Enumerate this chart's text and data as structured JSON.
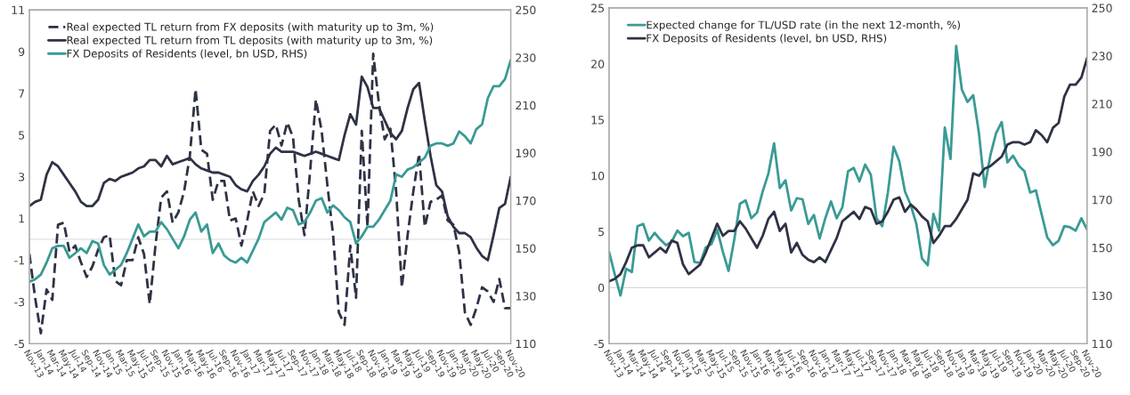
{
  "chart_data": [
    {
      "type": "line",
      "legend": "top left",
      "categories": [
        "Nov-13",
        null,
        "Jan-14",
        null,
        "Mar-14",
        null,
        "May-14",
        null,
        "Jul-14",
        null,
        "Sep-14",
        null,
        "Nov-14",
        null,
        "Jan-15",
        null,
        "Mar-15",
        null,
        "May-15",
        null,
        "Jul-15",
        null,
        "Sep-15",
        null,
        "Nov-15",
        null,
        "Jan-16",
        null,
        "Mar-16",
        null,
        "May-16",
        null,
        "Jul-16",
        null,
        "Sep-16",
        null,
        "Nov-16",
        null,
        "Jan-17",
        null,
        "Mar-17",
        null,
        "May-17",
        null,
        "Jul-17",
        null,
        "Sep-17",
        null,
        "Nov-17",
        null,
        "Jan-18",
        null,
        "Mar-18",
        null,
        "May-18",
        null,
        "Jul-18",
        null,
        "Sep-18",
        null,
        "Nov-18",
        null,
        "Jan-19",
        null,
        "Mar-19",
        null,
        "May-19",
        null,
        "Jul-19",
        null,
        "Sep-19",
        null,
        "Nov-19",
        null,
        "Jan-20",
        null,
        "Mar-20",
        null,
        "May-20",
        null,
        "Jul-20",
        null,
        "Sep-20",
        null,
        "Nov-20"
      ],
      "ylim": [
        -5,
        11
      ],
      "yticks": [
        -5,
        -3,
        -1,
        1,
        3,
        5,
        7,
        9,
        11
      ],
      "y2lim": [
        110,
        250
      ],
      "y2ticks": [
        110,
        130,
        150,
        170,
        190,
        210,
        230,
        250
      ],
      "ref_lines": [
        {
          "axis": "y",
          "value": 0,
          "color": "#d9d9d9"
        }
      ],
      "series": [
        {
          "name": "Real expected TL return from FX deposits (with maturity up to 3m, %)",
          "color": "#2e3244",
          "line_style": "dashed",
          "values": [
            -0.7,
            -2.8,
            -4.5,
            -2.4,
            -2.9,
            0.7,
            0.8,
            -0.6,
            -0.3,
            -1.1,
            -1.8,
            -1.3,
            -0.5,
            0.1,
            0.2,
            -2.0,
            -2.2,
            -1.0,
            -1.0,
            0.1,
            -0.7,
            -3.1,
            -0.3,
            2.0,
            2.3,
            0.8,
            1.3,
            2.3,
            4.0,
            7.2,
            4.3,
            4.1,
            1.9,
            2.8,
            2.8,
            0.9,
            1.0,
            -0.3,
            0.9,
            2.3,
            1.6,
            2.2,
            5.2,
            5.5,
            4.5,
            5.6,
            4.9,
            1.9,
            0.2,
            3.3,
            6.7,
            5.2,
            2.6,
            0.2,
            -3.5,
            -4.1,
            -0.3,
            -2.8,
            5.2,
            0.6,
            8.9,
            6.5,
            4.8,
            5.3,
            2.3,
            -2.3,
            0.2,
            2.3,
            4.1,
            0.6,
            1.8,
            1.9,
            2.1,
            0.9,
            0.7,
            -0.6,
            -3.5,
            -4.1,
            -3.3,
            -2.3,
            -2.5,
            -3.0,
            -1.9,
            -3.3,
            -3.3
          ]
        },
        {
          "name": "Real expected TL return from TL deposits (with maturity up to 3m, %)",
          "color": "#2e3244",
          "line_style": "solid",
          "values": [
            1.6,
            1.8,
            1.9,
            3.1,
            3.7,
            3.5,
            3.1,
            2.7,
            2.3,
            1.8,
            1.6,
            1.6,
            1.9,
            2.7,
            2.9,
            2.8,
            3.0,
            3.1,
            3.2,
            3.4,
            3.5,
            3.8,
            3.8,
            3.5,
            4.0,
            3.6,
            3.7,
            3.8,
            3.9,
            3.6,
            3.4,
            3.3,
            3.2,
            3.2,
            3.1,
            3.0,
            2.6,
            2.4,
            2.3,
            2.8,
            3.1,
            3.5,
            4.1,
            4.4,
            4.2,
            4.2,
            4.2,
            4.1,
            4.0,
            4.1,
            4.2,
            4.1,
            4.0,
            3.9,
            3.8,
            5.0,
            6.0,
            5.5,
            7.8,
            7.3,
            6.3,
            6.3,
            5.7,
            5.1,
            4.8,
            5.2,
            6.3,
            7.2,
            7.5,
            5.7,
            4.0,
            2.6,
            2.3,
            1.1,
            0.6,
            0.3,
            0.3,
            0.1,
            -0.4,
            -0.8,
            -1.0,
            0.2,
            1.5,
            1.7,
            3.0
          ]
        },
        {
          "name": "FX Deposits of Residents (level, bn USD, RHS)",
          "color": "#3a9a94",
          "line_style": "solid",
          "axis": "y2",
          "values": [
            136,
            137,
            139,
            144,
            150,
            151,
            151,
            146,
            148,
            150,
            148,
            153,
            152,
            143,
            139,
            141,
            143,
            148,
            154,
            160,
            155,
            157,
            157,
            161,
            158,
            154,
            150,
            155,
            162,
            165,
            157,
            160,
            148,
            152,
            147,
            145,
            144,
            146,
            144,
            149,
            154,
            161,
            163,
            165,
            162,
            167,
            166,
            160,
            161,
            165,
            170,
            171,
            165,
            168,
            166,
            163,
            161,
            152,
            155,
            159,
            159,
            162,
            166,
            170,
            181,
            180,
            183,
            184,
            186,
            188,
            193,
            194,
            194,
            193,
            194,
            199,
            197,
            194,
            200,
            202,
            213,
            218,
            218,
            221,
            229
          ]
        }
      ]
    },
    {
      "type": "line",
      "legend": "top left",
      "categories": [
        "Nov-13",
        null,
        "Jan-14",
        null,
        "Mar-14",
        null,
        "May-14",
        null,
        "Jul-14",
        null,
        "Sep-14",
        null,
        "Nov-14",
        null,
        "Jan-15",
        null,
        "Mar-15",
        null,
        "May-15",
        null,
        "Jul-15",
        null,
        "Sep-15",
        null,
        "Nov-15",
        null,
        "Jan-16",
        null,
        "Mar-16",
        null,
        "May-16",
        null,
        "Jul-16",
        null,
        "Sep-16",
        null,
        "Nov-16",
        null,
        "Jan-17",
        null,
        "Mar-17",
        null,
        "May-17",
        null,
        "Jul-17",
        null,
        "Sep-17",
        null,
        "Nov-17",
        null,
        "Jan-18",
        null,
        "Mar-18",
        null,
        "May-18",
        null,
        "Jul-18",
        null,
        "Sep-18",
        null,
        "Nov-18",
        null,
        "Jan-19",
        null,
        "Mar-19",
        null,
        "May-19",
        null,
        "Jul-19",
        null,
        "Sep-19",
        null,
        "Nov-19",
        null,
        "Jan-20",
        null,
        "Mar-20",
        null,
        "May-20",
        null,
        "Jul-20",
        null,
        "Sep-20",
        null,
        "Nov-20"
      ],
      "ylim": [
        -5,
        25
      ],
      "yticks": [
        -5,
        0,
        5,
        10,
        15,
        20,
        25
      ],
      "y2lim": [
        110,
        250
      ],
      "y2ticks": [
        110,
        130,
        150,
        170,
        190,
        210,
        230,
        250
      ],
      "ref_lines": [
        {
          "axis": "y",
          "value": 0,
          "color": "#d9d9d9"
        }
      ],
      "series": [
        {
          "name": "Expected change for TL/USD rate (in the next 12-month, %)",
          "color": "#3a9a94",
          "line_style": "solid",
          "values": [
            3.2,
            1.2,
            -0.7,
            1.7,
            1.4,
            5.5,
            5.7,
            4.2,
            4.9,
            4.3,
            3.8,
            4.1,
            5.1,
            4.6,
            4.9,
            2.3,
            2.2,
            3.6,
            3.9,
            5.2,
            3.2,
            1.5,
            4.3,
            7.5,
            7.8,
            6.2,
            6.7,
            8.6,
            10.2,
            12.9,
            8.9,
            9.6,
            6.9,
            8.0,
            7.9,
            5.7,
            6.5,
            4.4,
            6.2,
            7.7,
            6.2,
            7.2,
            10.4,
            10.7,
            9.5,
            11.0,
            10.1,
            6.2,
            5.5,
            8.5,
            12.6,
            11.3,
            8.6,
            7.4,
            5.7,
            2.6,
            2.0,
            6.6,
            5.1,
            14.3,
            11.5,
            21.6,
            17.7,
            16.6,
            17.2,
            13.8,
            9.0,
            11.8,
            13.8,
            14.8,
            11.2,
            11.8,
            10.9,
            10.4,
            8.5,
            8.7,
            6.6,
            4.5,
            3.8,
            4.2,
            5.5,
            5.4,
            5.1,
            6.2,
            5.2
          ]
        },
        {
          "name": "FX Deposits of Residents (level, bn USD, RHS)",
          "color": "#2e3244",
          "line_style": "solid",
          "axis": "y2",
          "values": [
            136,
            137,
            139,
            144,
            150,
            151,
            151,
            146,
            148,
            150,
            148,
            153,
            152,
            143,
            139,
            141,
            143,
            148,
            154,
            160,
            155,
            157,
            157,
            161,
            158,
            154,
            150,
            155,
            162,
            165,
            157,
            160,
            148,
            152,
            147,
            145,
            144,
            146,
            144,
            149,
            154,
            161,
            163,
            165,
            162,
            167,
            166,
            160,
            161,
            165,
            170,
            171,
            165,
            168,
            166,
            163,
            161,
            152,
            155,
            159,
            159,
            162,
            166,
            170,
            181,
            180,
            183,
            184,
            186,
            188,
            193,
            194,
            194,
            193,
            194,
            199,
            197,
            194,
            200,
            202,
            213,
            218,
            218,
            221,
            229
          ]
        }
      ]
    }
  ]
}
